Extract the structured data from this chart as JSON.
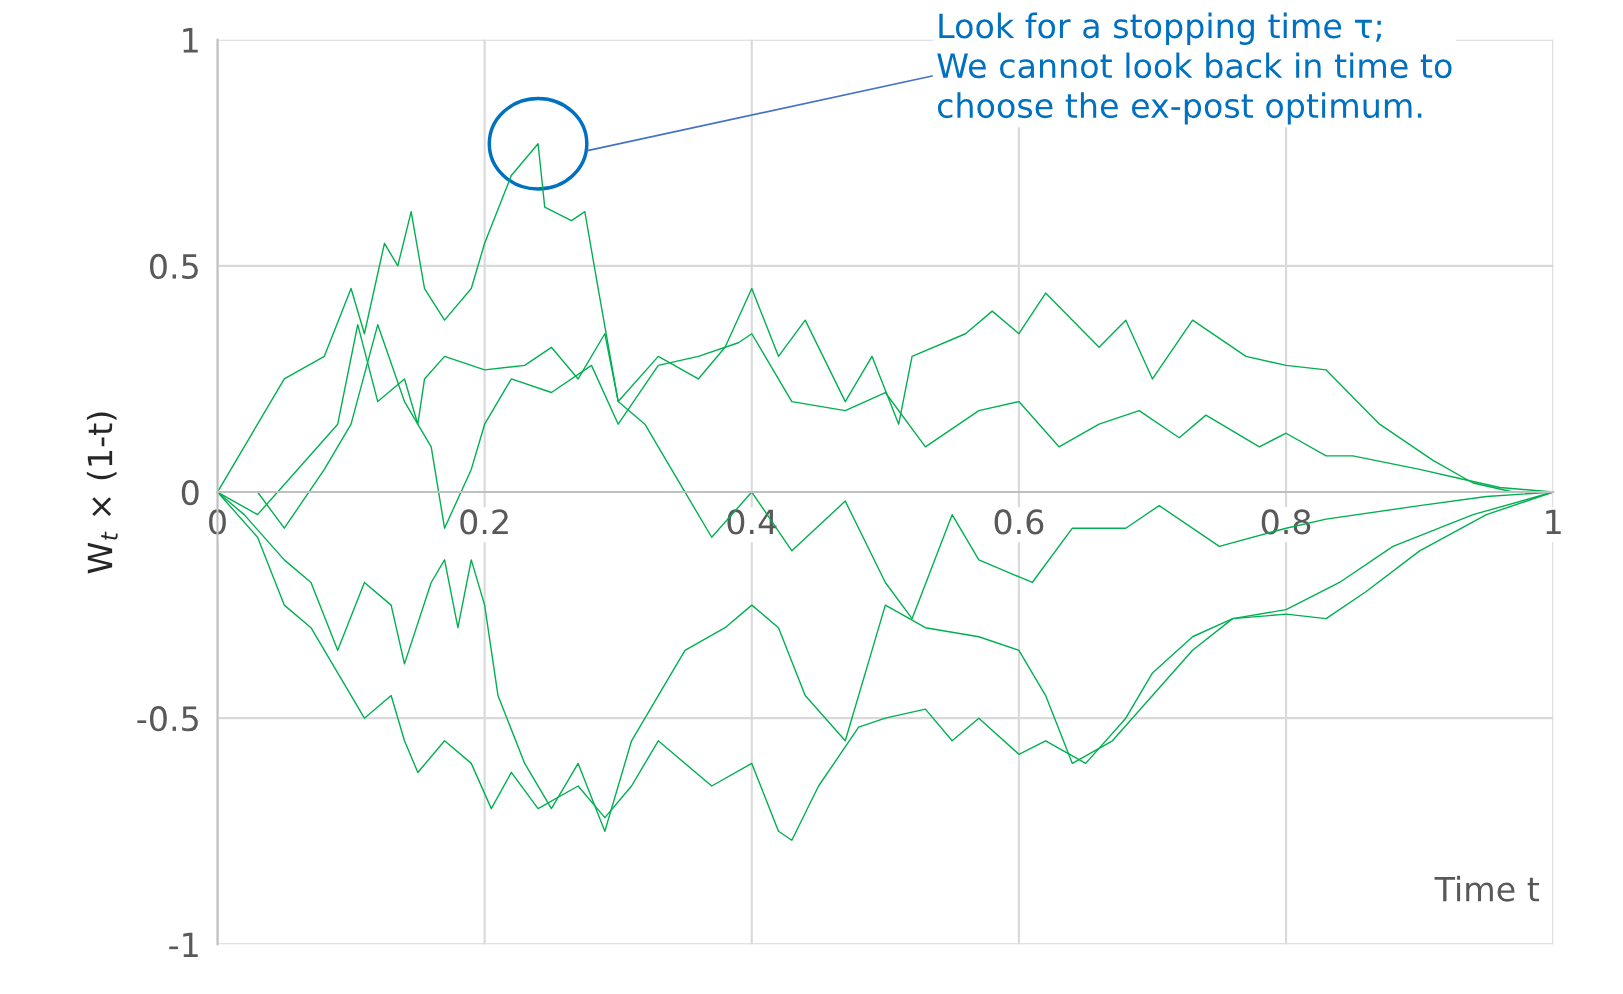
{
  "chart_data": {
    "type": "line",
    "xlabel": "Time t",
    "ylabel": "W$_{t}$ × (1-t)",
    "xlim": [
      0,
      1
    ],
    "xticks": [
      0,
      0.2,
      0.4,
      0.6,
      0.8,
      1
    ],
    "ylim": [
      -1,
      1
    ],
    "yticks": [
      -1,
      -0.5,
      0,
      0.5,
      1
    ],
    "grid": true,
    "line_style": "solid",
    "marker": "none",
    "annotations": [
      "Look for a stopping time τ;\nWe cannot look back in time to\nchoose the ex-post optimum."
    ],
    "series": [
      {
        "color": "#00b050",
        "x": [
          0,
          0.02,
          0.05,
          0.08,
          0.1,
          0.11,
          0.125,
          0.135,
          0.145,
          0.155,
          0.17,
          0.19,
          0.2,
          0.22,
          0.24,
          0.245,
          0.265,
          0.275,
          0.285,
          0.3,
          0.32,
          0.33,
          0.35,
          0.37,
          0.4,
          0.43,
          0.47,
          0.5,
          0.52,
          0.55,
          0.57,
          0.61,
          0.64,
          0.68,
          0.705,
          0.75,
          0.8,
          0.83,
          0.9,
          0.95,
          1
        ],
        "values": [
          0,
          0.1,
          0.25,
          0.3,
          0.45,
          0.35,
          0.55,
          0.5,
          0.62,
          0.45,
          0.38,
          0.45,
          0.55,
          0.7,
          0.77,
          0.63,
          0.6,
          0.62,
          0.45,
          0.2,
          0.15,
          0.1,
          0,
          -0.1,
          0,
          -0.13,
          -0.02,
          -0.2,
          -0.28,
          -0.05,
          -0.15,
          -0.2,
          -0.08,
          -0.08,
          -0.03,
          -0.12,
          -0.08,
          -0.06,
          -0.03,
          -0.01,
          0
        ]
      },
      {
        "color": "#00b050",
        "x": [
          0,
          0.03,
          0.06,
          0.09,
          0.105,
          0.12,
          0.14,
          0.15,
          0.155,
          0.17,
          0.2,
          0.23,
          0.25,
          0.27,
          0.29,
          0.3,
          0.33,
          0.36,
          0.38,
          0.4,
          0.42,
          0.44,
          0.47,
          0.49,
          0.51,
          0.52,
          0.56,
          0.58,
          0.6,
          0.62,
          0.66,
          0.68,
          0.7,
          0.73,
          0.77,
          0.8,
          0.83,
          0.87,
          0.91,
          0.94,
          0.97,
          1
        ],
        "values": [
          0,
          -0.05,
          0.05,
          0.15,
          0.37,
          0.2,
          0.25,
          0.15,
          0.25,
          0.3,
          0.27,
          0.28,
          0.32,
          0.25,
          0.35,
          0.2,
          0.3,
          0.25,
          0.32,
          0.45,
          0.3,
          0.38,
          0.2,
          0.3,
          0.15,
          0.3,
          0.35,
          0.4,
          0.35,
          0.44,
          0.32,
          0.38,
          0.25,
          0.38,
          0.3,
          0.28,
          0.27,
          0.15,
          0.07,
          0.02,
          0,
          0
        ]
      },
      {
        "color": "#00b050",
        "x": [
          0,
          0.03,
          0.05,
          0.08,
          0.1,
          0.12,
          0.14,
          0.16,
          0.17,
          0.19,
          0.2,
          0.22,
          0.25,
          0.28,
          0.3,
          0.33,
          0.36,
          0.39,
          0.4,
          0.43,
          0.47,
          0.5,
          0.53,
          0.57,
          0.6,
          0.63,
          0.66,
          0.69,
          0.72,
          0.74,
          0.78,
          0.8,
          0.83,
          0.85,
          0.9,
          0.93,
          0.96,
          1
        ],
        "values": [
          0,
          0,
          -0.08,
          0.05,
          0.15,
          0.37,
          0.2,
          0.1,
          -0.08,
          0.05,
          0.15,
          0.25,
          0.22,
          0.28,
          0.15,
          0.28,
          0.3,
          0.33,
          0.35,
          0.2,
          0.18,
          0.22,
          0.1,
          0.18,
          0.2,
          0.1,
          0.15,
          0.18,
          0.12,
          0.17,
          0.1,
          0.13,
          0.08,
          0.08,
          0.05,
          0.03,
          0.01,
          0
        ]
      },
      {
        "color": "#00b050",
        "x": [
          0,
          0.03,
          0.05,
          0.07,
          0.09,
          0.11,
          0.13,
          0.14,
          0.15,
          0.17,
          0.19,
          0.205,
          0.22,
          0.24,
          0.27,
          0.29,
          0.31,
          0.33,
          0.37,
          0.4,
          0.42,
          0.43,
          0.45,
          0.48,
          0.5,
          0.53,
          0.55,
          0.57,
          0.6,
          0.62,
          0.65,
          0.68,
          0.7,
          0.73,
          0.76,
          0.8,
          0.83,
          0.86,
          0.9,
          0.95,
          1
        ],
        "values": [
          0,
          -0.1,
          -0.25,
          -0.3,
          -0.4,
          -0.5,
          -0.45,
          -0.55,
          -0.62,
          -0.55,
          -0.6,
          -0.7,
          -0.62,
          -0.7,
          -0.65,
          -0.72,
          -0.65,
          -0.55,
          -0.65,
          -0.6,
          -0.75,
          -0.77,
          -0.65,
          -0.52,
          -0.5,
          -0.48,
          -0.55,
          -0.5,
          -0.58,
          -0.55,
          -0.6,
          -0.5,
          -0.4,
          -0.32,
          -0.28,
          -0.27,
          -0.28,
          -0.22,
          -0.13,
          -0.05,
          0
        ]
      },
      {
        "color": "#00b050",
        "x": [
          0,
          0.02,
          0.05,
          0.07,
          0.09,
          0.11,
          0.13,
          0.14,
          0.16,
          0.17,
          0.18,
          0.19,
          0.2,
          0.21,
          0.23,
          0.25,
          0.27,
          0.29,
          0.31,
          0.33,
          0.35,
          0.38,
          0.4,
          0.42,
          0.44,
          0.47,
          0.49,
          0.5,
          0.53,
          0.57,
          0.6,
          0.62,
          0.64,
          0.67,
          0.7,
          0.73,
          0.76,
          0.8,
          0.84,
          0.88,
          0.94,
          1
        ],
        "values": [
          0,
          -0.05,
          -0.15,
          -0.2,
          -0.35,
          -0.2,
          -0.25,
          -0.38,
          -0.2,
          -0.15,
          -0.3,
          -0.15,
          -0.25,
          -0.45,
          -0.6,
          -0.7,
          -0.6,
          -0.75,
          -0.55,
          -0.45,
          -0.35,
          -0.3,
          -0.25,
          -0.3,
          -0.45,
          -0.55,
          -0.35,
          -0.25,
          -0.3,
          -0.32,
          -0.35,
          -0.45,
          -0.6,
          -0.55,
          -0.45,
          -0.35,
          -0.28,
          -0.26,
          -0.2,
          -0.12,
          -0.05,
          0
        ]
      }
    ]
  }
}
